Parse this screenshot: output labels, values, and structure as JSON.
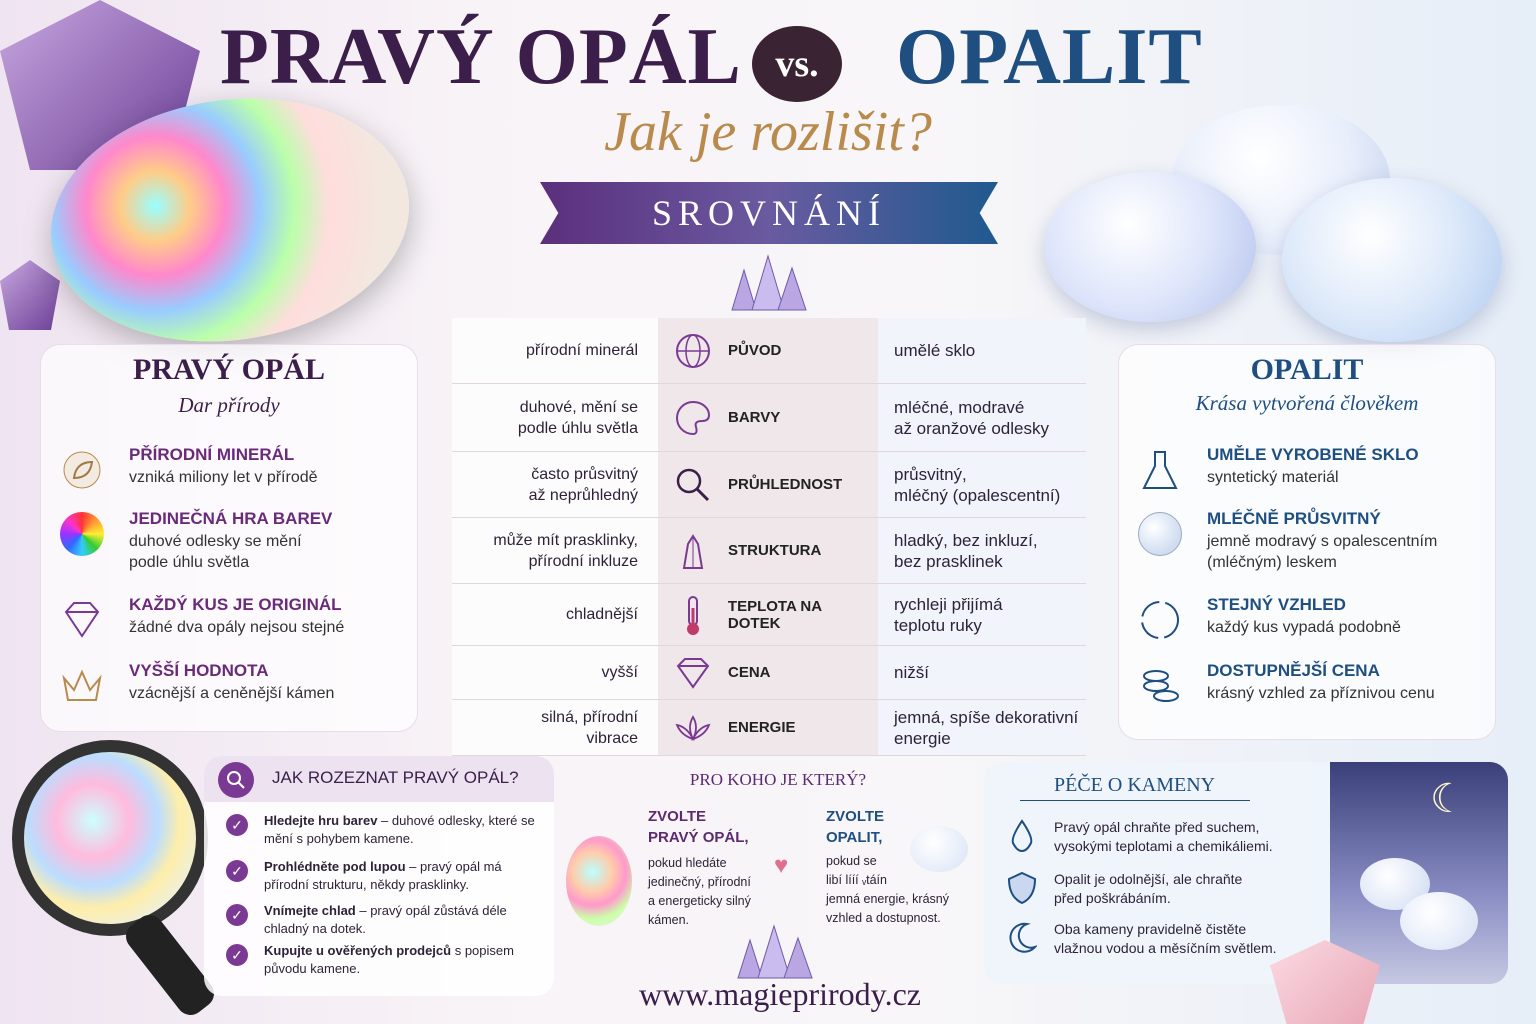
{
  "header": {
    "title_left": "PRAVÝ OPÁL",
    "vs": "vs.",
    "title_right": "OPALIT",
    "subtitle": "Jak je rozlišit?",
    "banner": "SROVNÁNÍ"
  },
  "left_panel": {
    "title": "PRAVÝ OPÁL",
    "subtitle": "Dar přírody",
    "items": [
      {
        "title": "PŘÍRODNÍ MINERÁL",
        "desc": "vzniká miliony let v přírodě",
        "icon": "leaf-icon"
      },
      {
        "title": "JEDINEČNÁ HRA BAREV",
        "desc": "duhové odlesky se mění\npodle úhlu světla",
        "icon": "color-wheel-icon"
      },
      {
        "title": "KAŽDÝ KUS JE ORIGINÁL",
        "desc": "žádné dva opály nejsou stejné",
        "icon": "diamond-icon"
      },
      {
        "title": "VYŠŠÍ HODNOTA",
        "desc": "vzácnější a ceněnější kámen",
        "icon": "crown-icon"
      }
    ]
  },
  "right_panel": {
    "title": "OPALIT",
    "subtitle": "Krása vytvořená člověkem",
    "items": [
      {
        "title": "UMĚLE VYROBENÉ SKLO",
        "desc": "syntetický materiál",
        "icon": "flask-icon"
      },
      {
        "title": "MLÉČNĚ PRŮSVITNÝ",
        "desc": "jemně modravý s opalescentním\n(mléčným) leskem",
        "icon": "sphere-icon"
      },
      {
        "title": "STEJNÝ VZHLED",
        "desc": "každý kus vypadá podobně",
        "icon": "cycle-icon"
      },
      {
        "title": "DOSTUPNĚJŠÍ CENA",
        "desc": "krásný vzhled za příznivou cenu",
        "icon": "coins-icon"
      }
    ]
  },
  "comparison": [
    {
      "label": "PŮVOD",
      "left": "přírodní minerál",
      "right": "umělé sklo",
      "icon": "globe-icon"
    },
    {
      "label": "BARVY",
      "left": "duhové, mění se\npodle úhlu světla",
      "right": "mléčné, modravé\naž oranžové odlesky",
      "icon": "palette-icon"
    },
    {
      "label": "PRŮHLEDNOST",
      "left": "často průsvitný\naž neprůhledný",
      "right": "průsvitný,\nmléčný (opalescentní)",
      "icon": "magnifier-icon"
    },
    {
      "label": "STRUKTURA",
      "left": "může mít prasklinky,\npřírodní inkluze",
      "right": "hladký, bez inkluzí,\nbez prasklinek",
      "icon": "crystal-icon"
    },
    {
      "label": "TEPLOTA NA DOTEK",
      "left": "chladnější",
      "right": "rychleji přijímá\nteplotu ruky",
      "icon": "thermometer-icon"
    },
    {
      "label": "CENA",
      "left": "vyšší",
      "right": "nižší",
      "icon": "gem-icon"
    },
    {
      "label": "ENERGIE",
      "left": "silná, přírodní\nvibrace",
      "right": "jemná, spíše dekorativní\nenergie",
      "icon": "lotus-icon"
    }
  ],
  "how_to": {
    "title": "JAK ROZEZNAT PRAVÝ OPÁL?",
    "items": [
      {
        "bold": "Hledejte hru barev",
        "rest": " – duhové odlesky, které se mění s pohybem kamene."
      },
      {
        "bold": "Prohlédněte pod lupou",
        "rest": " – pravý opál má přírodní strukturu, někdy prasklinky."
      },
      {
        "bold": "Vnímejte chlad",
        "rest": " – pravý opál zůstává déle chladný na dotek."
      },
      {
        "bold": "Kupujte u ověřených prodejců",
        "rest": " s popisem původu kamene."
      }
    ]
  },
  "for_whom": {
    "title": "PRO KOHO JE KTERÝ?",
    "left_head": "ZVOLTE\nPRAVÝ OPÁL,",
    "left_text": "pokud hledáte\njedinečný, přírodní\na energeticky silný\nkámen.",
    "right_head": "ZVOLTE\nOPALIT,",
    "right_text": "pokud se\nlibí lííí ᵥtáín\njemná energie, krásný\nvzhled a dostupnost."
  },
  "care": {
    "title": "PÉČE O KAMENY",
    "items": [
      {
        "text": "Pravý opál chraňte před suchem,\nvysokými teplotami a chemikáliemi.",
        "icon": "drop-icon"
      },
      {
        "text": "Opalit je odolnější, ale chraňte\npřed poškrábáním.",
        "icon": "shield-icon"
      },
      {
        "text": "Oba kameny pravidelně čistěte\nvlažnou vodou a měsíčním světlem.",
        "icon": "moon-icon"
      }
    ]
  },
  "footer": {
    "url": "www.magieprirody.cz"
  },
  "colors": {
    "purple": "#3b1f4a",
    "blue": "#1f4f80",
    "gold": "#b88a4c",
    "accent_purple": "#7a3a94"
  }
}
